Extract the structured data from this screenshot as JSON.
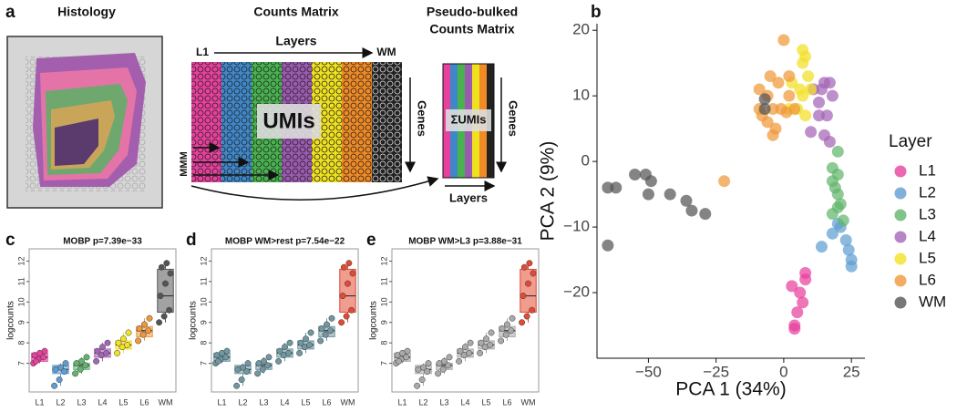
{
  "panel_a": {
    "panel_label": "a",
    "histology": "Histology",
    "counts_title": "Counts Matrix",
    "pseudo_title_1": "Pseudo-bulked",
    "pseudo_title_2": "Counts Matrix",
    "first_layer": "L1",
    "layers_top": "Layers",
    "last_layer": "WM",
    "umis": "UMIs",
    "genes_1": "Genes",
    "sum_umis": "ΣUMIs",
    "genes_2": "Genes",
    "layers_bottom": "Layers",
    "row_label": "MMM"
  },
  "chart_data": [
    {
      "type": "scatter",
      "panel_label": "b",
      "x_label": "PCA 1 (34%)",
      "y_label": "PCA 2 (9%)",
      "legend_title": "Layer",
      "xlim": [
        -69,
        30
      ],
      "xticks": [
        {
          "value": -50,
          "label": "−50"
        },
        {
          "value": -25,
          "label": "−25"
        },
        0,
        25
      ],
      "ylim": [
        -30,
        21
      ],
      "yticks": [
        {
          "value": -20,
          "label": "−20"
        },
        {
          "value": -10,
          "label": "−10"
        },
        0,
        10,
        20
      ],
      "series": [
        {
          "name": "L1",
          "color": "#e8409d",
          "x": [
            8,
            3,
            6,
            7,
            5,
            4,
            4,
            8
          ],
          "values": [
            -17,
            -19,
            -20,
            -21.5,
            -23,
            -25.5,
            -25,
            -18
          ]
        },
        {
          "name": "L2",
          "color": "#5f9ed1",
          "x": [
            21,
            18,
            23,
            24,
            25,
            14,
            20,
            25
          ],
          "values": [
            -10,
            -11,
            -12,
            -13.5,
            -15,
            -13,
            -9.5,
            -16
          ]
        },
        {
          "name": "L3",
          "color": "#62b56c",
          "x": [
            20,
            18,
            20,
            18,
            19,
            20,
            21,
            20,
            18,
            22
          ],
          "values": [
            1.5,
            -1,
            -2,
            -3,
            -4,
            -5,
            -6.5,
            -7,
            -8,
            -9
          ]
        },
        {
          "name": "L4",
          "color": "#a565b7",
          "x": [
            15,
            17,
            14,
            18,
            11,
            16,
            13,
            10,
            15,
            17,
            13
          ],
          "values": [
            12,
            12,
            11,
            10,
            11,
            7,
            7,
            4.5,
            4,
            3,
            9
          ]
        },
        {
          "name": "L5",
          "color": "#f2e124",
          "x": [
            7,
            8,
            7,
            3,
            6,
            7,
            9,
            5,
            8,
            2,
            10
          ],
          "values": [
            17,
            16,
            15,
            12,
            11,
            10,
            13,
            8,
            7,
            8,
            11
          ]
        },
        {
          "name": "L6",
          "color": "#f0983a",
          "x": [
            -22,
            0,
            -5,
            -2,
            2,
            -6,
            -9,
            -4,
            -6,
            -1,
            -3,
            -4,
            -8,
            1,
            4,
            2,
            -9
          ],
          "values": [
            -3,
            18.5,
            13,
            12,
            13,
            10,
            8,
            8,
            6,
            8,
            5,
            4,
            7,
            7.5,
            8,
            10,
            11
          ]
        },
        {
          "name": "WM",
          "color": "#555555",
          "x": [
            -65,
            -65,
            -62,
            -55,
            -51,
            -49,
            -50,
            -42,
            -36,
            -34,
            -29,
            -7,
            -7
          ],
          "values": [
            -12.8,
            -4,
            -4,
            -2,
            -2,
            -3,
            -5,
            -5,
            -6,
            -7.5,
            -8,
            9.5,
            8
          ]
        }
      ]
    },
    {
      "type": "box",
      "panel_label": "c",
      "title": "MOBP p=7.39e−33",
      "y_label": "logcounts",
      "categories": [
        "L1",
        "L2",
        "L3",
        "L4",
        "L5",
        "L6",
        "WM"
      ],
      "colors": [
        "#e8409d",
        "#5f9ed1",
        "#62b56c",
        "#a565b7",
        "#f2e124",
        "#f0983a",
        "#555555"
      ],
      "ylim": [
        5.6,
        12.6
      ],
      "yticks": [
        7,
        8,
        9,
        10,
        11,
        12
      ],
      "boxes": [
        {
          "low": 7.0,
          "q1": 7.1,
          "median": 7.3,
          "q3": 7.5,
          "high": 7.6
        },
        {
          "low": 5.9,
          "q1": 6.5,
          "median": 6.7,
          "q3": 6.9,
          "high": 7.0
        },
        {
          "low": 6.5,
          "q1": 6.7,
          "median": 6.9,
          "q3": 7.0,
          "high": 7.3
        },
        {
          "low": 7.1,
          "q1": 7.3,
          "median": 7.5,
          "q3": 7.7,
          "high": 8.0
        },
        {
          "low": 7.5,
          "q1": 7.7,
          "median": 7.9,
          "q3": 8.1,
          "high": 8.5
        },
        {
          "low": 8.1,
          "q1": 8.3,
          "median": 8.6,
          "q3": 8.8,
          "high": 9.2
        },
        {
          "low": 9.0,
          "q1": 9.5,
          "median": 10.3,
          "q3": 11.6,
          "high": 11.9
        }
      ],
      "points": [
        [
          7.0,
          7.2,
          7.3,
          7.4,
          7.5,
          7.6,
          7.1
        ],
        [
          5.9,
          6.2,
          6.6,
          6.7,
          6.8,
          7.0
        ],
        [
          6.5,
          6.7,
          6.9,
          7.0,
          7.1,
          7.3
        ],
        [
          7.1,
          7.4,
          7.5,
          7.6,
          7.8,
          8.0
        ],
        [
          7.5,
          7.8,
          7.9,
          8.0,
          8.2,
          8.5
        ],
        [
          8.1,
          8.4,
          8.6,
          8.7,
          8.9,
          9.2
        ],
        [
          9.0,
          9.3,
          9.6,
          10.3,
          10.9,
          11.4,
          11.7,
          11.9
        ]
      ]
    },
    {
      "type": "box",
      "panel_label": "d",
      "title": "MOBP WM>rest p=7.54e−22",
      "y_label": "logcounts",
      "categories": [
        "L1",
        "L2",
        "L3",
        "L4",
        "L5",
        "L6",
        "WM"
      ],
      "colors": [
        "#6f98a3",
        "#6f98a3",
        "#6f98a3",
        "#6f98a3",
        "#6f98a3",
        "#6f98a3",
        "#e34a33"
      ],
      "ylim": [
        5.6,
        12.6
      ],
      "yticks": [
        7,
        8,
        9,
        10,
        11,
        12
      ],
      "boxes": [
        {
          "low": 7.0,
          "q1": 7.1,
          "median": 7.3,
          "q3": 7.5,
          "high": 7.6
        },
        {
          "low": 5.9,
          "q1": 6.5,
          "median": 6.7,
          "q3": 6.9,
          "high": 7.0
        },
        {
          "low": 6.5,
          "q1": 6.7,
          "median": 6.9,
          "q3": 7.0,
          "high": 7.3
        },
        {
          "low": 7.1,
          "q1": 7.3,
          "median": 7.5,
          "q3": 7.7,
          "high": 8.0
        },
        {
          "low": 7.5,
          "q1": 7.7,
          "median": 7.9,
          "q3": 8.1,
          "high": 8.5
        },
        {
          "low": 8.1,
          "q1": 8.3,
          "median": 8.6,
          "q3": 8.8,
          "high": 9.2
        },
        {
          "low": 9.0,
          "q1": 9.5,
          "median": 10.3,
          "q3": 11.6,
          "high": 11.9
        }
      ],
      "points": [
        [
          7.0,
          7.2,
          7.3,
          7.4,
          7.5,
          7.6,
          7.1
        ],
        [
          5.9,
          6.2,
          6.6,
          6.7,
          6.8,
          7.0
        ],
        [
          6.5,
          6.7,
          6.9,
          7.0,
          7.1,
          7.3
        ],
        [
          7.1,
          7.4,
          7.5,
          7.6,
          7.8,
          8.0
        ],
        [
          7.5,
          7.8,
          7.9,
          8.0,
          8.2,
          8.5
        ],
        [
          8.1,
          8.4,
          8.6,
          8.7,
          8.9,
          9.2
        ],
        [
          9.0,
          9.3,
          9.6,
          10.3,
          10.9,
          11.4,
          11.7,
          11.9
        ]
      ]
    },
    {
      "type": "box",
      "panel_label": "e",
      "title": "MOBP WM>L3 p=3.88e−31",
      "y_label": "logcounts",
      "categories": [
        "L1",
        "L2",
        "L3",
        "L4",
        "L5",
        "L6",
        "WM"
      ],
      "colors": [
        "#aaaaaa",
        "#aaaaaa",
        "#aaaaaa",
        "#aaaaaa",
        "#aaaaaa",
        "#aaaaaa",
        "#e34a33"
      ],
      "ylim": [
        5.6,
        12.6
      ],
      "yticks": [
        7,
        8,
        9,
        10,
        11,
        12
      ],
      "boxes": [
        {
          "low": 7.0,
          "q1": 7.1,
          "median": 7.3,
          "q3": 7.5,
          "high": 7.6
        },
        {
          "low": 5.9,
          "q1": 6.5,
          "median": 6.7,
          "q3": 6.9,
          "high": 7.0
        },
        {
          "low": 6.5,
          "q1": 6.7,
          "median": 6.9,
          "q3": 7.0,
          "high": 7.3
        },
        {
          "low": 7.1,
          "q1": 7.3,
          "median": 7.5,
          "q3": 7.7,
          "high": 8.0
        },
        {
          "low": 7.5,
          "q1": 7.7,
          "median": 7.9,
          "q3": 8.1,
          "high": 8.5
        },
        {
          "low": 8.1,
          "q1": 8.3,
          "median": 8.6,
          "q3": 8.8,
          "high": 9.2
        },
        {
          "low": 9.0,
          "q1": 9.5,
          "median": 10.3,
          "q3": 11.6,
          "high": 11.9
        }
      ],
      "points": [
        [
          7.0,
          7.2,
          7.3,
          7.4,
          7.5,
          7.6,
          7.1
        ],
        [
          5.9,
          6.2,
          6.6,
          6.7,
          6.8,
          7.0
        ],
        [
          6.5,
          6.7,
          6.9,
          7.0,
          7.1,
          7.3
        ],
        [
          7.1,
          7.4,
          7.5,
          7.6,
          7.8,
          8.0
        ],
        [
          7.5,
          7.8,
          7.9,
          8.0,
          8.2,
          8.5
        ],
        [
          8.1,
          8.4,
          8.6,
          8.7,
          8.9,
          9.2
        ],
        [
          9.0,
          9.3,
          9.6,
          10.3,
          10.9,
          11.4,
          11.7,
          11.9
        ]
      ]
    }
  ]
}
